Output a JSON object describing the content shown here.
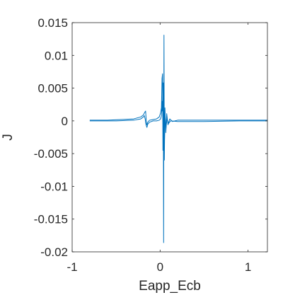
{
  "chart_data": {
    "type": "line",
    "title": "",
    "xlabel": "Eapp_Ecb",
    "ylabel": "J",
    "xlim": [
      -1,
      1.22
    ],
    "ylim": [
      -0.02,
      0.015
    ],
    "xticks": [
      -1,
      0,
      1
    ],
    "xtick_labels": [
      "-1",
      "0",
      "1"
    ],
    "yticks": [
      0.015,
      0.01,
      0.005,
      0,
      -0.005,
      -0.01,
      -0.015,
      -0.02
    ],
    "ytick_labels": [
      "0.015",
      "0.01",
      "0.005",
      "0",
      "-0.005",
      "-0.01",
      "-0.015",
      "-0.02"
    ],
    "grid": false,
    "box": true,
    "line_color": "#0072BD",
    "series": [
      {
        "values_xy": [
          [
            -0.8,
            0.0001
          ],
          [
            -0.6,
            0.0001
          ],
          [
            -0.45,
            0.0002
          ],
          [
            -0.3,
            0.0003
          ],
          [
            -0.22,
            0.0006
          ],
          [
            -0.19,
            0.0009
          ],
          [
            -0.175,
            0.0013
          ],
          [
            -0.165,
            0.0015
          ],
          [
            -0.16,
            0.0005
          ],
          [
            -0.155,
            -0.0004
          ],
          [
            -0.15,
            -0.0006
          ],
          [
            -0.14,
            -0.0002
          ],
          [
            -0.12,
            0.0001
          ],
          [
            -0.08,
            0.0002
          ],
          [
            -0.04,
            0.0003
          ],
          [
            -0.01,
            0.0006
          ],
          [
            0.005,
            0.0012
          ],
          [
            0.015,
            0.002
          ],
          [
            0.022,
            0.0065
          ],
          [
            0.028,
            0.0072
          ],
          [
            0.032,
            -0.0045
          ],
          [
            0.036,
            0.0058
          ],
          [
            0.04,
            -0.0186
          ],
          [
            0.044,
            0.0131
          ],
          [
            0.048,
            -0.006
          ],
          [
            0.055,
            0.002
          ],
          [
            0.065,
            -0.0018
          ],
          [
            0.075,
            0.0011
          ],
          [
            0.09,
            -0.0006
          ],
          [
            0.11,
            0.0003
          ],
          [
            0.14,
            -0.0001
          ],
          [
            0.2,
            0.0001
          ],
          [
            0.4,
            0.0001
          ],
          [
            0.7,
            0.0001
          ],
          [
            1.0,
            0.0001
          ],
          [
            1.22,
            0.0001
          ]
        ]
      },
      {
        "values_xy": [
          [
            -0.8,
            0.0
          ],
          [
            -0.5,
            0.0
          ],
          [
            -0.3,
            0.0001
          ],
          [
            -0.22,
            0.0003
          ],
          [
            -0.19,
            0.0006
          ],
          [
            -0.18,
            0.0008
          ],
          [
            -0.17,
            0.0003
          ],
          [
            -0.16,
            -0.0006
          ],
          [
            -0.15,
            -0.001
          ],
          [
            -0.14,
            -0.0005
          ],
          [
            -0.12,
            -0.0002
          ],
          [
            -0.08,
            0.0
          ],
          [
            -0.04,
            0.0
          ],
          [
            -0.01,
            0.0001
          ],
          [
            0.005,
            0.0003
          ],
          [
            0.015,
            0.0008
          ],
          [
            0.022,
            0.003
          ],
          [
            0.026,
            0.0015
          ],
          [
            0.03,
            0.0042
          ],
          [
            0.034,
            -0.0012
          ],
          [
            0.038,
            0.0028
          ],
          [
            0.042,
            -0.0055
          ],
          [
            0.046,
            0.0009
          ],
          [
            0.05,
            -0.0028
          ],
          [
            0.056,
            0.0008
          ],
          [
            0.066,
            -0.0012
          ],
          [
            0.078,
            0.0003
          ],
          [
            0.095,
            -0.0004
          ],
          [
            0.12,
            0.0
          ],
          [
            0.2,
            -0.0001
          ],
          [
            0.5,
            -0.0001
          ],
          [
            0.9,
            0.0
          ],
          [
            1.22,
            0.0
          ]
        ]
      }
    ]
  }
}
